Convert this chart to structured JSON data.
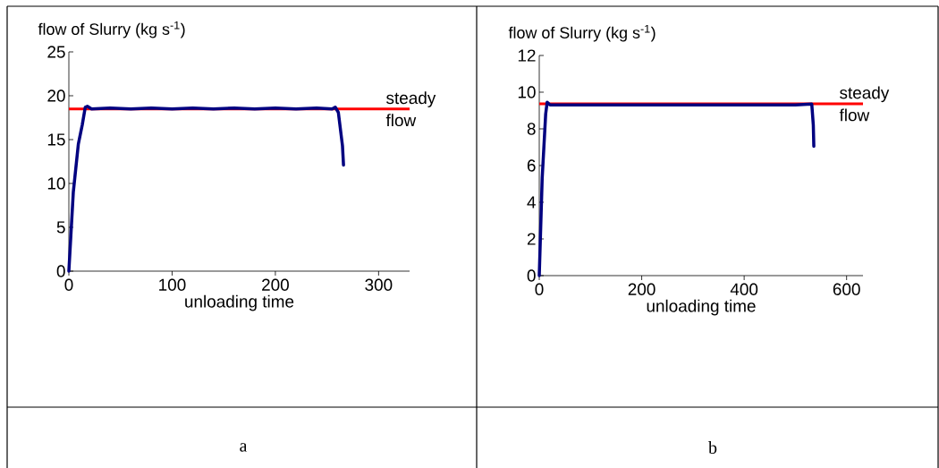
{
  "chart_data": [
    {
      "type": "line",
      "xlabel": "unloading time",
      "ylabel": "flow of Slurry (kg s$^{-1}$)",
      "xlim": [
        0,
        330
      ],
      "ylim": [
        0,
        25
      ],
      "xticks": [
        0,
        100,
        200,
        300
      ],
      "yticks": [
        0,
        5,
        10,
        15,
        20,
        25
      ],
      "marker": "none",
      "series": [
        {
          "color": "#000080",
          "x": [
            0,
            4.3,
            9.2,
            13,
            15.9,
            17.9,
            22,
            40,
            60,
            80,
            100,
            120,
            140,
            160,
            180,
            200,
            220,
            240,
            255,
            258,
            261,
            265,
            266
          ],
          "values": [
            0,
            9,
            14.5,
            16.7,
            18.7,
            18.8,
            18.5,
            18.6,
            18.5,
            18.6,
            18.5,
            18.6,
            18.5,
            18.6,
            18.5,
            18.6,
            18.5,
            18.6,
            18.5,
            18.7,
            18.1,
            14.3,
            12.1
          ]
        }
      ],
      "ref_lines": [
        {
          "axis": "y",
          "value": 18.5,
          "label": "steady flow",
          "color": "#ff0000"
        }
      ],
      "annotations": [
        "a"
      ]
    },
    {
      "type": "line",
      "xlabel": "unloading time",
      "ylabel": "flow of Slurry (kg s$^{-1}$)",
      "xlim": [
        0,
        632
      ],
      "ylim": [
        0,
        12
      ],
      "xticks": [
        0,
        200,
        400,
        600
      ],
      "yticks": [
        0,
        2,
        4,
        6,
        8,
        10,
        12
      ],
      "marker": "none",
      "series": [
        {
          "color": "#000080",
          "x": [
            0,
            5.7,
            12.5,
            15.4,
            21,
            60,
            100,
            140,
            180,
            220,
            260,
            300,
            340,
            380,
            420,
            460,
            500,
            532,
            535,
            536
          ],
          "values": [
            0,
            5.3,
            8.8,
            9.45,
            9.3,
            9.3,
            9.3,
            9.3,
            9.3,
            9.3,
            9.3,
            9.3,
            9.3,
            9.3,
            9.3,
            9.3,
            9.3,
            9.35,
            8.2,
            7.05
          ]
        }
      ],
      "ref_lines": [
        {
          "axis": "y",
          "value": 9.37,
          "label": "steady flow",
          "color": "#ff0000"
        }
      ],
      "annotations": [
        "b"
      ]
    }
  ]
}
